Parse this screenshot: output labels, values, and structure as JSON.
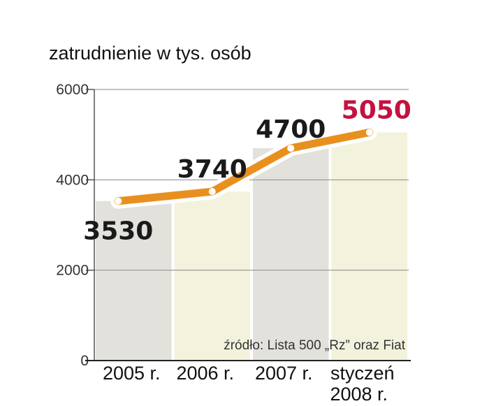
{
  "chart_data": {
    "type": "line",
    "title": "zatrudnienie w tys. osób",
    "categories": [
      [
        "2005 r."
      ],
      [
        "2006 r."
      ],
      [
        "2007 r."
      ],
      [
        "styczeń",
        "2008 r."
      ]
    ],
    "values": [
      3530,
      3740,
      4700,
      5050
    ],
    "data_labels": [
      "3530",
      "3740",
      "4700",
      "5050"
    ],
    "yticks": [
      "0",
      "2000",
      "4000",
      "6000"
    ],
    "ylim": [
      0,
      6000
    ],
    "grid": true,
    "source": "źródło: Lista 500 „Rz” oraz Fiat",
    "colors": {
      "line": "#e8901f",
      "column_a": "#e2e1dc",
      "column_b": "#f3f2dc",
      "label": "#1a1a1a",
      "highlight": "#c4123f"
    }
  }
}
